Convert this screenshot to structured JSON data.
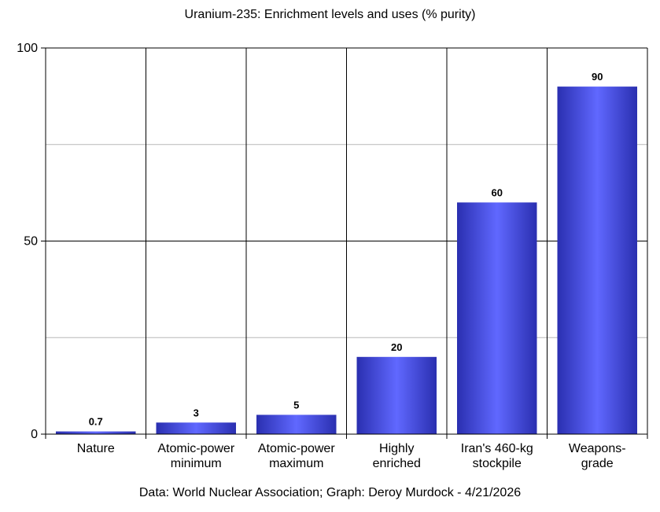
{
  "chart_data": {
    "type": "bar",
    "title": "Uranium-235: Enrichment levels and uses (% purity)",
    "categories": [
      [
        "Nature"
      ],
      [
        "Atomic-power",
        "minimum"
      ],
      [
        "Atomic-power",
        "maximum"
      ],
      [
        "Highly",
        "enriched"
      ],
      [
        "Iran's 460-kg",
        "stockpile"
      ],
      [
        "Weapons-",
        "grade"
      ]
    ],
    "values": [
      0.7,
      3,
      5,
      20,
      60,
      90
    ],
    "data_labels": [
      "0.7",
      "3",
      "5",
      "20",
      "60",
      "90"
    ],
    "ylim": [
      0,
      100
    ],
    "yticks": [
      0,
      50,
      100
    ],
    "minor_gridlines": [
      25,
      75
    ],
    "grid": true,
    "legend": "none",
    "bar_color_dark": "#2a2fb0",
    "bar_color_light": "#6068ff",
    "footer": "Data: World Nuclear Association; Graph: Deroy Murdock - 4/21/2026"
  }
}
